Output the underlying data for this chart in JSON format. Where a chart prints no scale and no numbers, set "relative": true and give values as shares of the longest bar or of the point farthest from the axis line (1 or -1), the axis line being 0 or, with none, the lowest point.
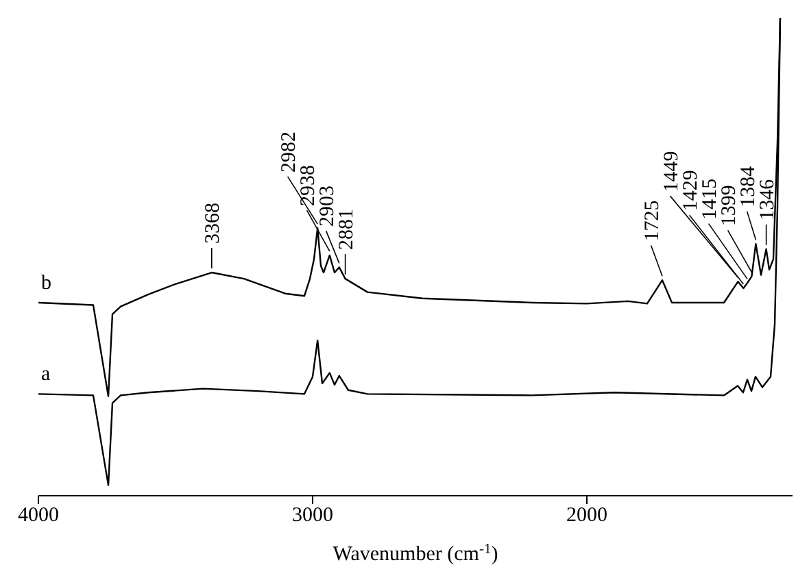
{
  "chart_data": {
    "type": "line",
    "relative": true,
    "xlabel": "Wavenumber (cm$^{-1}$)",
    "xlim": [
      4000,
      1250
    ],
    "xticks": [
      4000,
      3000,
      2000
    ],
    "series": [
      {
        "name": "b",
        "color": "#000000",
        "x": [
          4000,
          3800,
          3745,
          3730,
          3700,
          3600,
          3500,
          3368,
          3250,
          3100,
          3030,
          3010,
          2995,
          2982,
          2970,
          2960,
          2938,
          2920,
          2903,
          2881,
          2800,
          2600,
          2200,
          2000,
          1850,
          1780,
          1725,
          1690,
          1500,
          1449,
          1429,
          1415,
          1399,
          1384,
          1365,
          1346,
          1335,
          1320,
          1305,
          1295
        ],
        "values": [
          0.404,
          0.399,
          0.208,
          0.38,
          0.396,
          0.421,
          0.443,
          0.467,
          0.454,
          0.423,
          0.418,
          0.454,
          0.495,
          0.56,
          0.481,
          0.467,
          0.503,
          0.467,
          0.478,
          0.454,
          0.426,
          0.413,
          0.404,
          0.402,
          0.407,
          0.402,
          0.451,
          0.404,
          0.404,
          0.448,
          0.434,
          0.445,
          0.459,
          0.527,
          0.462,
          0.516,
          0.473,
          0.495,
          0.74,
          1
        ]
      },
      {
        "name": "a",
        "color": "#000000",
        "x": [
          4000,
          3800,
          3745,
          3730,
          3700,
          3600,
          3400,
          3200,
          3030,
          3000,
          2982,
          2965,
          2938,
          2920,
          2903,
          2870,
          2800,
          2200,
          1900,
          1500,
          1450,
          1430,
          1415,
          1400,
          1385,
          1360,
          1330,
          1315,
          1305,
          1295
        ],
        "values": [
          0.213,
          0.21,
          0.022,
          0.194,
          0.21,
          0.216,
          0.224,
          0.219,
          0.213,
          0.249,
          0.325,
          0.235,
          0.257,
          0.232,
          0.251,
          0.221,
          0.213,
          0.21,
          0.216,
          0.21,
          0.23,
          0.216,
          0.243,
          0.219,
          0.249,
          0.227,
          0.249,
          0.358,
          0.604,
          1
        ]
      }
    ],
    "annotations": [
      {
        "text": "3368",
        "x": 3368,
        "y": 0.467
      },
      {
        "text": "2982",
        "x": 2982,
        "y": 0.56
      },
      {
        "text": "2938",
        "x": 2938,
        "y": 0.503
      },
      {
        "text": "2903",
        "x": 2903,
        "y": 0.478
      },
      {
        "text": "2881",
        "x": 2881,
        "y": 0.454
      },
      {
        "text": "1725",
        "x": 1725,
        "y": 0.451
      },
      {
        "text": "1449",
        "x": 1449,
        "y": 0.448
      },
      {
        "text": "1429",
        "x": 1429,
        "y": 0.434
      },
      {
        "text": "1415",
        "x": 1415,
        "y": 0.445
      },
      {
        "text": "1399",
        "x": 1399,
        "y": 0.459
      },
      {
        "text": "1384",
        "x": 1384,
        "y": 0.527
      },
      {
        "text": "1346",
        "x": 1346,
        "y": 0.516
      }
    ]
  }
}
